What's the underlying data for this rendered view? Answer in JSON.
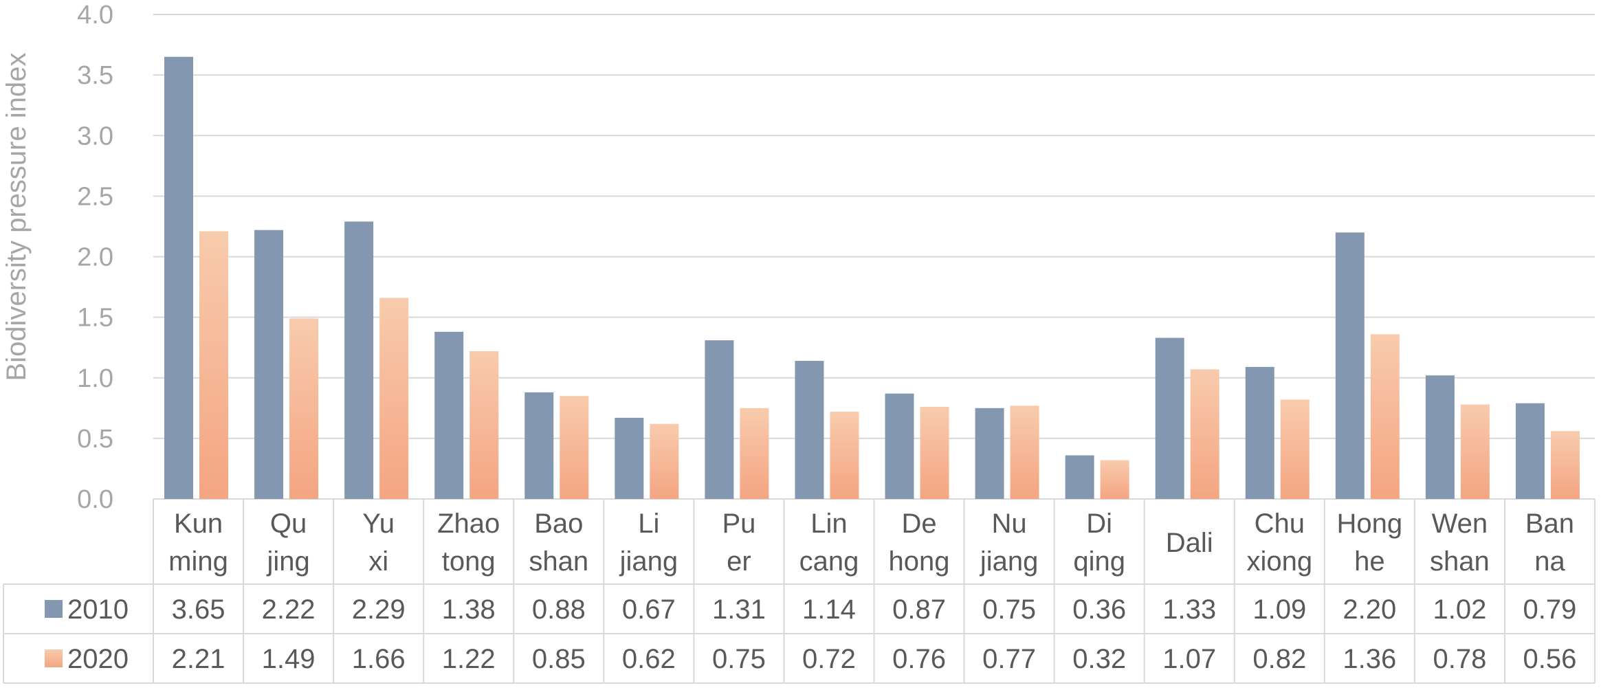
{
  "chart_data": {
    "type": "bar",
    "title": "",
    "ylabel": "Biodiversity pressure index",
    "ylim": [
      0,
      4.0
    ],
    "yticks": [
      "0.0",
      "0.5",
      "1.0",
      "1.5",
      "2.0",
      "2.5",
      "3.0",
      "3.5",
      "4.0"
    ],
    "grid": true,
    "legend": "data table rows",
    "categories": [
      [
        "Kun",
        "ming"
      ],
      [
        "Qu",
        "jing"
      ],
      [
        "Yu",
        "xi"
      ],
      [
        "Zhao",
        "tong"
      ],
      [
        "Bao",
        "shan"
      ],
      [
        "Li",
        "jiang"
      ],
      [
        "Pu",
        "er"
      ],
      [
        "Lin",
        "cang"
      ],
      [
        "De",
        "hong"
      ],
      [
        "Nu",
        "jiang"
      ],
      [
        "Di",
        "qing"
      ],
      [
        "Dali"
      ],
      [
        "Chu",
        "xiong"
      ],
      [
        "Hong",
        "he"
      ],
      [
        "Wen",
        "shan"
      ],
      [
        "Ban",
        "na"
      ]
    ],
    "series": [
      {
        "name": "2010",
        "color": "#8497b0",
        "values": [
          3.65,
          2.22,
          2.29,
          1.38,
          0.88,
          0.67,
          1.31,
          1.14,
          0.87,
          0.75,
          0.36,
          1.33,
          1.09,
          2.2,
          1.02,
          0.79
        ],
        "labels": [
          "3.65",
          "2.22",
          "2.29",
          "1.38",
          "0.88",
          "0.67",
          "1.31",
          "1.14",
          "0.87",
          "0.75",
          "0.36",
          "1.33",
          "1.09",
          "2.20",
          "1.02",
          "0.79"
        ]
      },
      {
        "name": "2020",
        "color": "#f4a582",
        "color_light": "#f8cbad",
        "values": [
          2.21,
          1.49,
          1.66,
          1.22,
          0.85,
          0.62,
          0.75,
          0.72,
          0.76,
          0.77,
          0.32,
          1.07,
          0.82,
          1.36,
          0.78,
          0.56
        ],
        "labels": [
          "2.21",
          "1.49",
          "1.66",
          "1.22",
          "0.85",
          "0.62",
          "0.75",
          "0.72",
          "0.76",
          "0.77",
          "0.32",
          "1.07",
          "0.82",
          "1.36",
          "0.78",
          "0.56"
        ]
      }
    ]
  }
}
